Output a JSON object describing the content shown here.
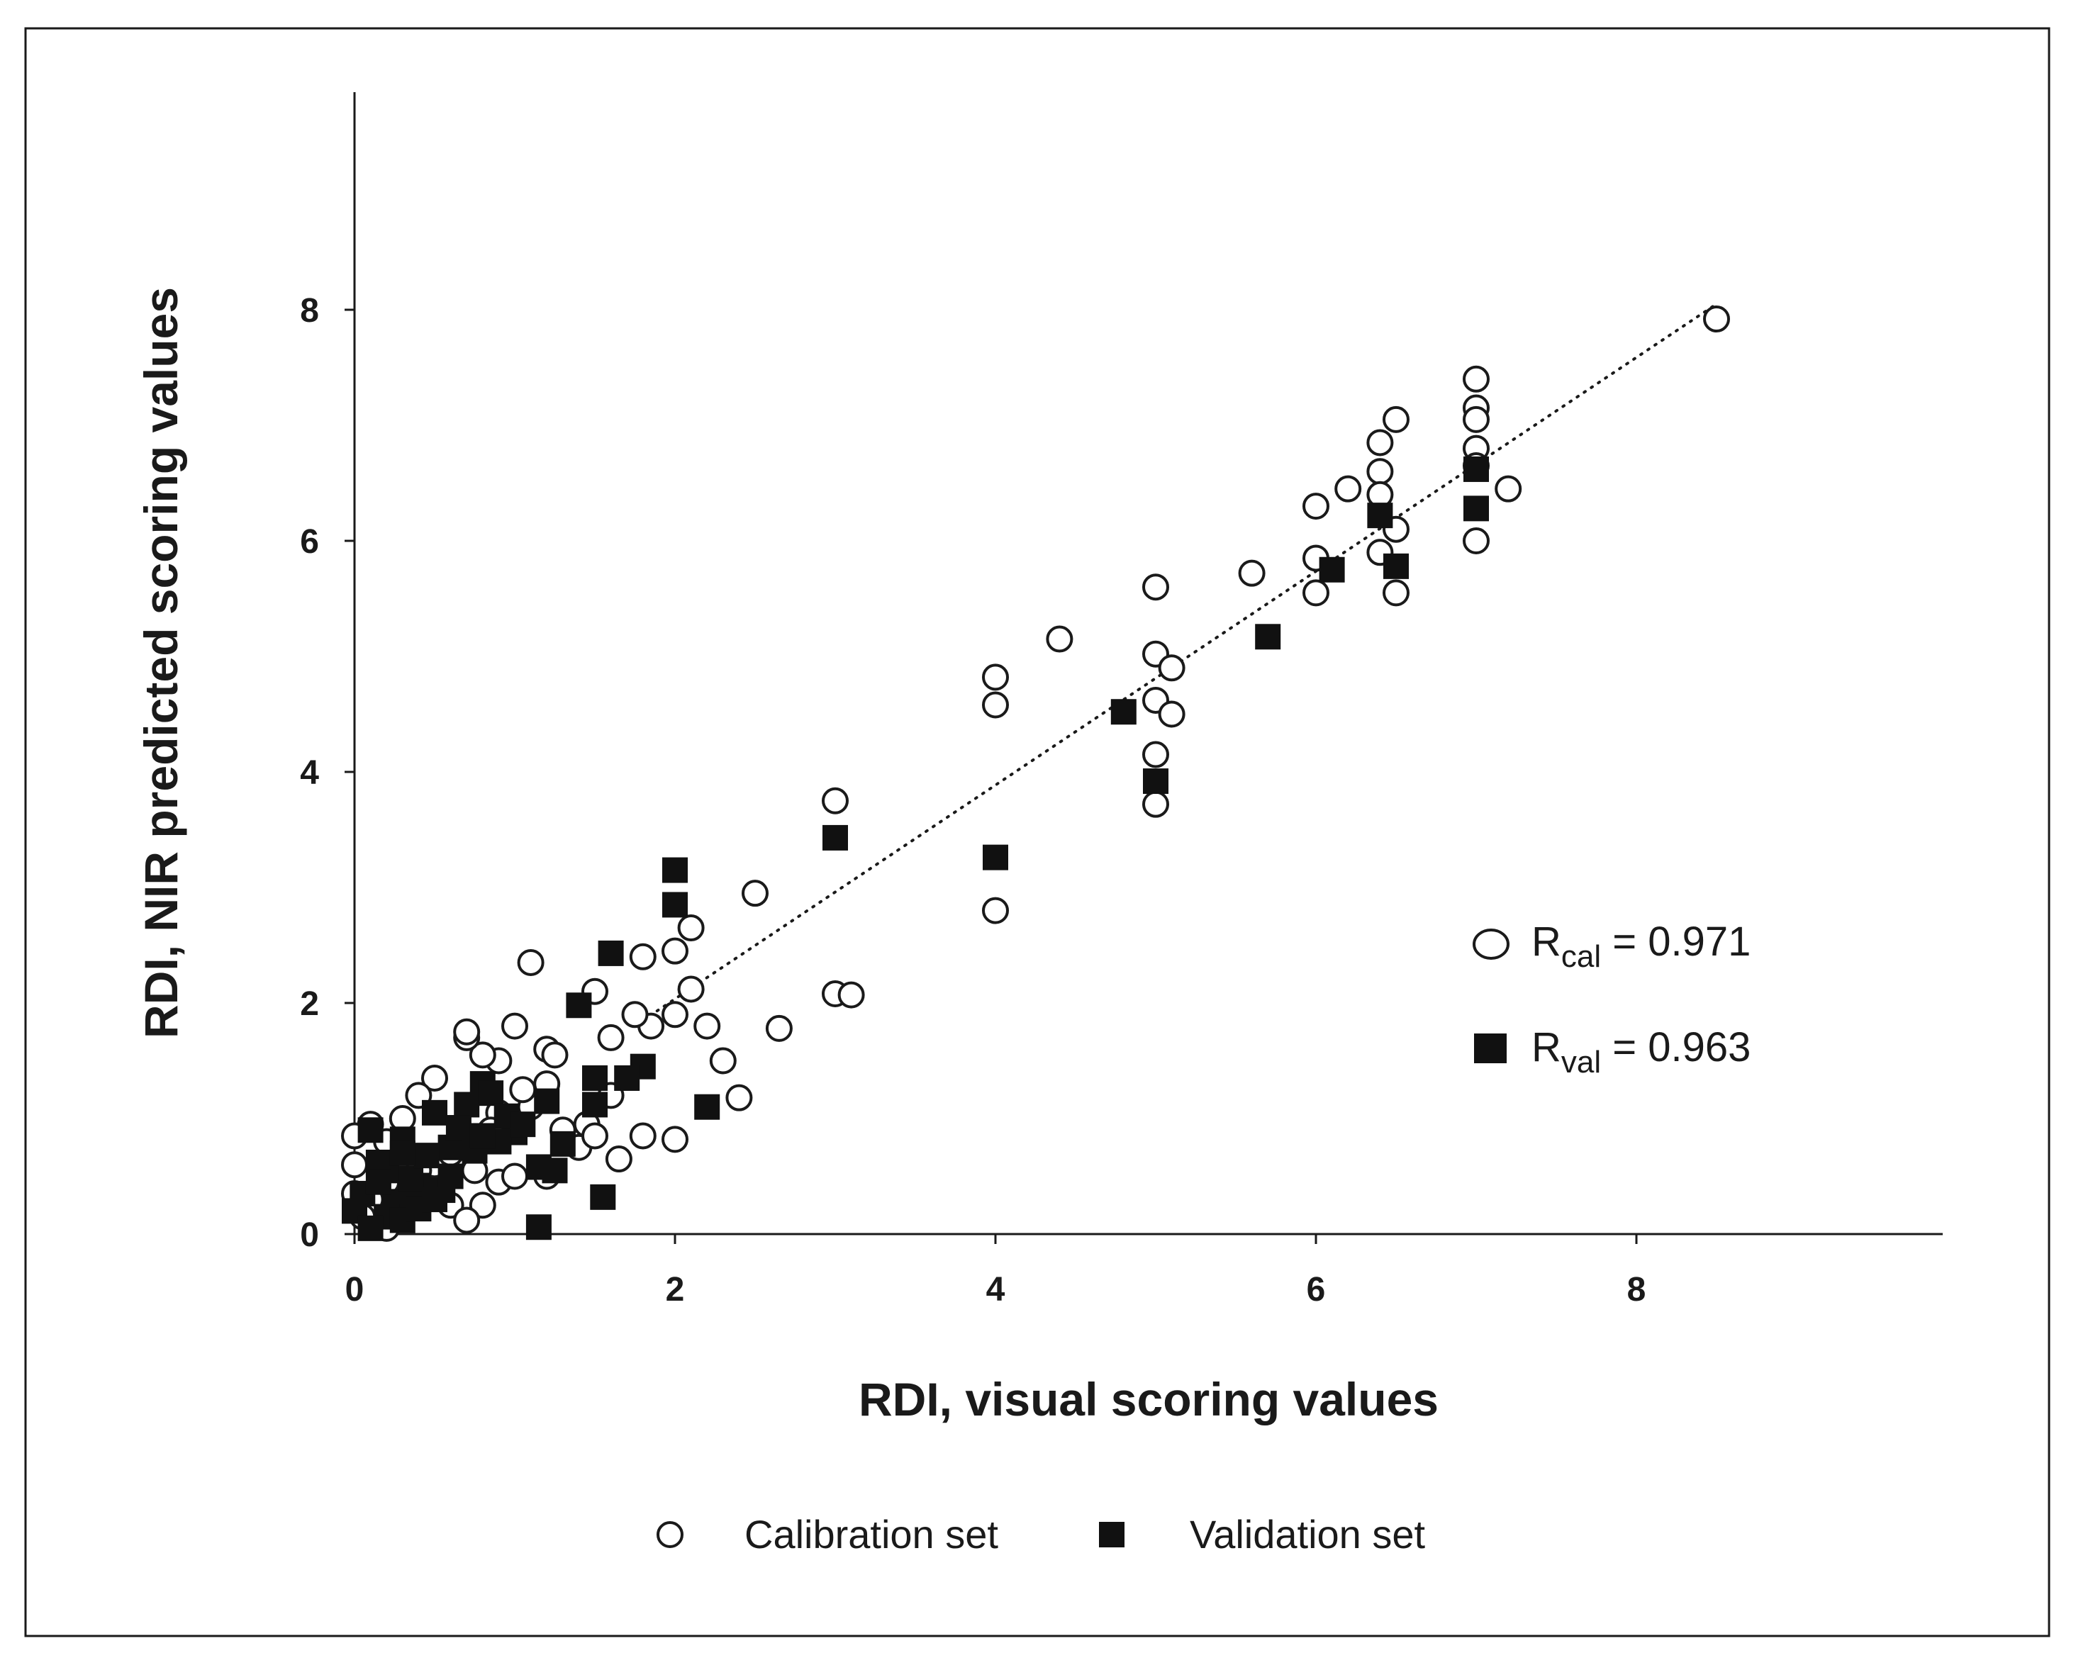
{
  "chart_data": {
    "type": "scatter",
    "xlabel": "RDI, visual scoring values",
    "ylabel": "RDI, NIR predicted scoring values",
    "xlim": [
      0,
      9.8
    ],
    "ylim": [
      0,
      9.8
    ],
    "x_ticks": [
      0,
      2,
      4,
      6,
      8
    ],
    "y_ticks": [
      0,
      2,
      4,
      6,
      8
    ],
    "grid": false,
    "legend_position": "bottom",
    "fit_line": {
      "style": "dotted",
      "x": [
        1.8,
        8.5
      ],
      "y": [
        1.85,
        8.05
      ]
    },
    "series": [
      {
        "name": "Calibration set",
        "marker": "open-circle",
        "x": [
          8.5,
          7.0,
          7.0,
          7.0,
          7.0,
          7.0,
          7.0,
          7.2,
          6.5,
          6.4,
          6.4,
          6.4,
          6.5,
          6.4,
          6.5,
          6.2,
          6.0,
          6.0,
          6.0,
          5.6,
          5.0,
          5.0,
          5.1,
          5.0,
          5.1,
          5.0,
          5.0,
          4.4,
          4.0,
          4.0,
          4.0,
          3.0,
          3.0,
          3.1,
          2.5,
          2.65,
          2.1,
          2.1,
          2.0,
          2.0,
          2.0,
          2.2,
          2.3,
          2.4,
          1.8,
          1.85,
          1.75,
          1.8,
          1.6,
          1.5,
          1.6,
          1.2,
          1.1,
          1.25,
          1.0,
          1.2,
          0.9,
          0.8,
          0.7,
          0.7,
          0.5,
          0.4,
          0.3,
          0.1,
          0.0,
          0.0,
          0.2,
          0.6,
          0.8,
          0.7,
          0.75,
          0.9,
          1.0,
          1.1,
          1.4,
          1.45,
          1.65,
          1.5,
          1.3,
          1.2,
          0.5,
          0.3,
          0.2,
          0.1,
          0.05,
          0.0,
          0.4,
          0.6,
          0.2,
          0.9,
          1.05,
          0.85
        ],
        "y": [
          7.92,
          7.4,
          7.15,
          7.05,
          6.8,
          6.65,
          6.0,
          6.45,
          7.05,
          6.85,
          6.6,
          6.4,
          6.1,
          5.9,
          5.55,
          6.45,
          6.3,
          5.85,
          5.55,
          5.72,
          5.6,
          5.02,
          4.9,
          4.62,
          4.5,
          4.15,
          3.72,
          5.15,
          4.82,
          4.58,
          2.8,
          3.75,
          2.08,
          2.07,
          2.95,
          1.78,
          2.65,
          2.12,
          2.45,
          1.9,
          0.82,
          1.8,
          1.5,
          1.18,
          2.4,
          1.8,
          1.9,
          0.85,
          1.7,
          2.1,
          1.2,
          1.6,
          2.35,
          1.55,
          1.8,
          1.3,
          1.5,
          1.55,
          1.7,
          1.75,
          1.35,
          1.2,
          1.0,
          0.95,
          0.85,
          0.6,
          0.05,
          0.25,
          0.25,
          0.12,
          0.55,
          0.45,
          0.5,
          1.1,
          0.75,
          0.95,
          0.65,
          0.85,
          0.9,
          0.5,
          0.6,
          0.4,
          0.45,
          0.3,
          0.15,
          0.35,
          0.55,
          0.7,
          0.8,
          1.05,
          1.25,
          0.9
        ]
      },
      {
        "name": "Validation set",
        "marker": "filled-square",
        "x": [
          7.0,
          7.0,
          6.4,
          6.5,
          6.1,
          5.7,
          4.8,
          5.0,
          4.0,
          3.0,
          2.0,
          2.0,
          1.6,
          1.4,
          2.2,
          1.8,
          1.7,
          1.5,
          1.2,
          1.15,
          1.3,
          1.55,
          1.15,
          1.0,
          0.9,
          0.8,
          0.7,
          0.6,
          0.5,
          0.4,
          0.3,
          0.2,
          0.1,
          0.0,
          0.05,
          0.15,
          0.25,
          0.35,
          0.45,
          0.55,
          0.65,
          0.75,
          0.85,
          0.95,
          1.05,
          0.2,
          0.3,
          0.1,
          0.4,
          0.6,
          0.8,
          1.25,
          1.5,
          0.5,
          0.3,
          0.15
        ],
        "y": [
          6.62,
          6.28,
          6.22,
          5.78,
          5.75,
          5.17,
          4.52,
          3.92,
          3.26,
          3.43,
          3.15,
          2.85,
          2.43,
          1.98,
          1.1,
          1.45,
          1.35,
          1.12,
          1.15,
          0.58,
          0.78,
          0.32,
          0.06,
          0.88,
          0.8,
          1.3,
          1.12,
          0.75,
          1.05,
          0.42,
          0.82,
          0.55,
          0.9,
          0.2,
          0.35,
          0.62,
          0.28,
          0.48,
          0.68,
          0.38,
          0.92,
          0.72,
          1.22,
          1.02,
          0.95,
          0.15,
          0.12,
          0.05,
          0.22,
          0.5,
          0.85,
          0.55,
          1.35,
          0.3,
          0.7,
          0.45
        ]
      }
    ],
    "annotations": [
      {
        "marker": "open-circle",
        "label_main": "R",
        "label_sub": "cal",
        "label_value": " = 0.971"
      },
      {
        "marker": "filled-square",
        "label_main": "R",
        "label_sub": "val",
        "label_value": " = 0.963"
      }
    ]
  },
  "colors": {
    "ink": "#1a1a1a",
    "background": "#ffffff"
  }
}
